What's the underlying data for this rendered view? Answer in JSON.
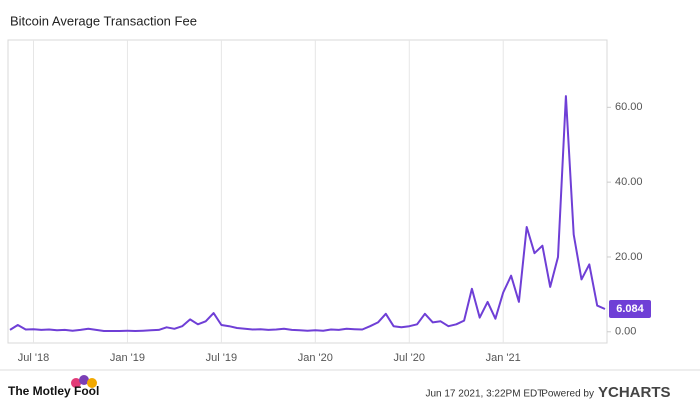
{
  "chart_data": {
    "type": "line",
    "title": "Bitcoin Average Transaction Fee",
    "categories": [
      null,
      null,
      null,
      "Jul '18",
      null,
      null,
      null,
      null,
      null,
      null,
      null,
      null,
      null,
      null,
      null,
      "Jan '19",
      null,
      null,
      null,
      null,
      null,
      null,
      null,
      null,
      null,
      null,
      null,
      "Jul '19",
      null,
      null,
      null,
      null,
      null,
      null,
      null,
      null,
      null,
      null,
      null,
      "Jan '20",
      null,
      null,
      null,
      null,
      null,
      null,
      null,
      null,
      null,
      null,
      null,
      "Jul '20",
      null,
      null,
      null,
      null,
      null,
      null,
      null,
      null,
      null,
      null,
      null,
      "Jan '21",
      null,
      null,
      null,
      null,
      null,
      null,
      null,
      null,
      null,
      null,
      null,
      null,
      null
    ],
    "series": [
      {
        "name": "Bitcoin Average Transaction Fee",
        "color": "#6f3fd6",
        "values": [
          0.5,
          1.8,
          0.6,
          0.7,
          0.5,
          0.6,
          0.4,
          0.5,
          0.3,
          0.5,
          0.8,
          0.5,
          0.2,
          0.2,
          0.2,
          0.3,
          0.2,
          0.3,
          0.4,
          0.5,
          1.2,
          0.8,
          1.5,
          3.3,
          2.0,
          2.8,
          5.0,
          1.8,
          1.5,
          1.0,
          0.8,
          0.6,
          0.7,
          0.5,
          0.6,
          0.8,
          0.5,
          0.4,
          0.3,
          0.4,
          0.3,
          0.6,
          0.5,
          0.8,
          0.7,
          0.6,
          1.5,
          2.5,
          4.8,
          1.5,
          1.2,
          1.5,
          2.0,
          4.8,
          2.5,
          2.8,
          1.5,
          2.0,
          3.0,
          11.5,
          3.8,
          8.0,
          3.5,
          10.5,
          15.0,
          8.0,
          28.0,
          21.0,
          23.0,
          12.0,
          20.0,
          63.0,
          26.0,
          14.0,
          18.0,
          7.0,
          6.084
        ]
      }
    ],
    "ylim": [
      -3,
      78
    ],
    "yticks": [
      {
        "value": 0,
        "label": "0.00"
      },
      {
        "value": 20,
        "label": "20.00"
      },
      {
        "value": 40,
        "label": "40.00"
      },
      {
        "value": 60,
        "label": "60.00"
      }
    ]
  },
  "footer": {
    "logo": "The Motley Fool",
    "timestamp": "Jun 17 2021, 3:22PM EDT.",
    "powered_by": "Powered by",
    "brand": "YCHARTS"
  }
}
